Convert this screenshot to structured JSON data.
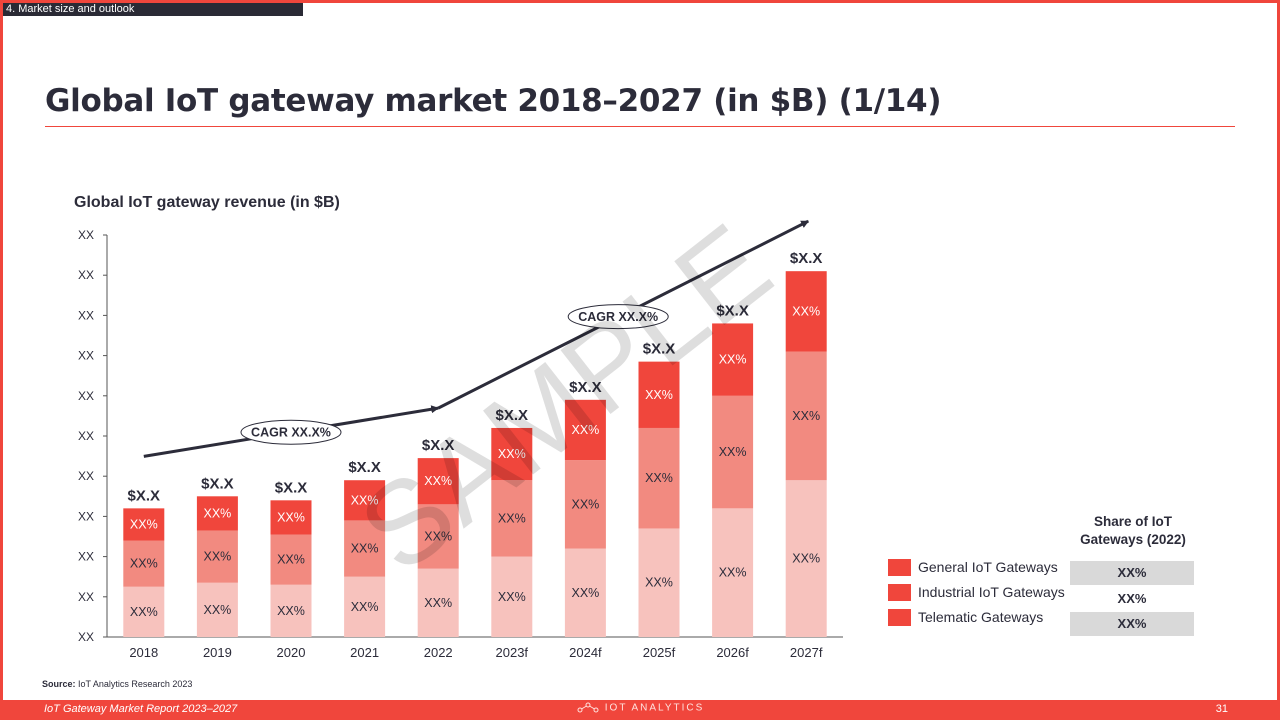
{
  "section_tag": "4. Market size and outlook",
  "title": "Global IoT gateway market 2018–2027 (in $B) (1/14)",
  "watermark": "SAMPLE",
  "chart_data": {
    "type": "bar",
    "stacked": true,
    "title": "Global IoT gateway revenue (in $B)",
    "xlabel": "",
    "ylabel": "",
    "categories": [
      "2018",
      "2019",
      "2020",
      "2021",
      "2022",
      "2023f",
      "2024f",
      "2025f",
      "2026f",
      "2027f"
    ],
    "y_tick_labels": [
      "XX",
      "XX",
      "XX",
      "XX",
      "XX",
      "XX",
      "XX",
      "XX",
      "XX",
      "XX",
      "XX"
    ],
    "ylim": [
      0,
      10
    ],
    "grid": false,
    "total_labels": [
      "$X.X",
      "$X.X",
      "$X.X",
      "$X.X",
      "$X.X",
      "$X.X",
      "$X.X",
      "$X.X",
      "$X.X",
      "$X.X"
    ],
    "segment_label": "XX%",
    "series": [
      {
        "values": [
          1.25,
          1.35,
          1.3,
          1.5,
          1.7,
          2.0,
          2.2,
          2.7,
          3.2,
          3.9
        ],
        "color": "#f7c2bd"
      },
      {
        "values": [
          1.15,
          1.3,
          1.25,
          1.4,
          1.6,
          1.9,
          2.2,
          2.5,
          2.8,
          3.2
        ],
        "color": "#f28a80"
      },
      {
        "values": [
          0.8,
          0.85,
          0.85,
          1.0,
          1.15,
          1.3,
          1.5,
          1.65,
          1.8,
          2.0
        ],
        "color": "#f0463c"
      }
    ],
    "annotations": [
      {
        "text": "CAGR XX.X%"
      },
      {
        "text": "CAGR XX.X%"
      }
    ]
  },
  "legend": {
    "items": [
      "General IoT Gateways",
      "Industrial IoT Gateways",
      "Telematic Gateways"
    ]
  },
  "share_table": {
    "header": "Share of IoT Gateways (2022)",
    "values": [
      "XX%",
      "XX%",
      "XX%"
    ]
  },
  "source": {
    "label": "Source:",
    "text": " IoT Analytics Research 2023"
  },
  "footer": {
    "report_name": "IoT Gateway Market Report 2023–2027",
    "brand": "IOT ANALYTICS",
    "page_number": "31"
  },
  "colors": {
    "accent": "#f0463c",
    "dark_text": "#2c2c3a",
    "segment_light": "#f7c2bd",
    "segment_mid": "#f28a80",
    "segment_dark": "#f0463c"
  }
}
